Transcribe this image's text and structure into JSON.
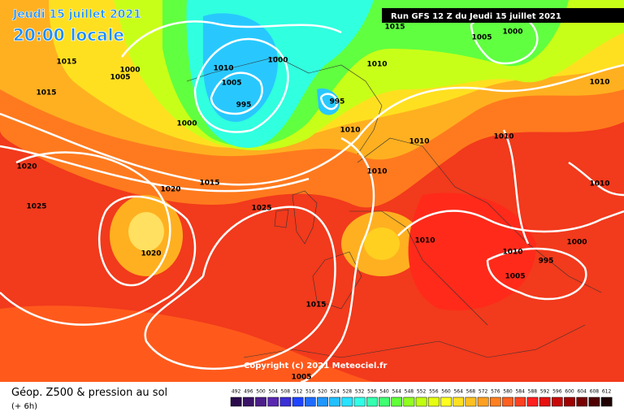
{
  "header": {
    "date": "Jeudi 15 juillet 2021",
    "time": "20:00 locale",
    "run": "Run GFS 12 Z du Jeudi 15 juillet 2021"
  },
  "copyright": "Copyright (c) 2021 Meteociel.fr",
  "isobar_labels": [
    "1015",
    "1000",
    "1005",
    "1015",
    "1010",
    "1000",
    "1005",
    "995",
    "1000",
    "995",
    "1010",
    "1010",
    "1015",
    "1005",
    "1000",
    "1010",
    "1010",
    "1010",
    "1010",
    "1010",
    "1020",
    "1025",
    "1015",
    "1020",
    "1025",
    "1020",
    "1010",
    "1010",
    "1000",
    "995",
    "1005",
    "1015",
    "1005"
  ],
  "legend": {
    "title": "Géop. Z500 & pression au sol",
    "subtitle": "(+ 6h)",
    "scale": [
      492,
      496,
      500,
      504,
      508,
      512,
      516,
      520,
      524,
      528,
      532,
      536,
      540,
      544,
      548,
      552,
      556,
      560,
      564,
      568,
      572,
      576,
      580,
      584,
      588,
      592,
      596,
      600,
      604,
      608,
      612
    ],
    "colors": [
      "#2a0a4a",
      "#3a1466",
      "#4b1e8a",
      "#5a28b0",
      "#3b2fd6",
      "#1f44ff",
      "#1e6cff",
      "#2096ff",
      "#22bfff",
      "#28e2ff",
      "#30ffe8",
      "#36ffb0",
      "#40ff70",
      "#60ff38",
      "#90ff20",
      "#c0ff10",
      "#e6ff10",
      "#ffff20",
      "#ffe020",
      "#ffc020",
      "#ffa020",
      "#ff8020",
      "#ff6020",
      "#ff4020",
      "#ff2020",
      "#e61010",
      "#c80808",
      "#a00000",
      "#780000",
      "#500000",
      "#200000"
    ]
  }
}
